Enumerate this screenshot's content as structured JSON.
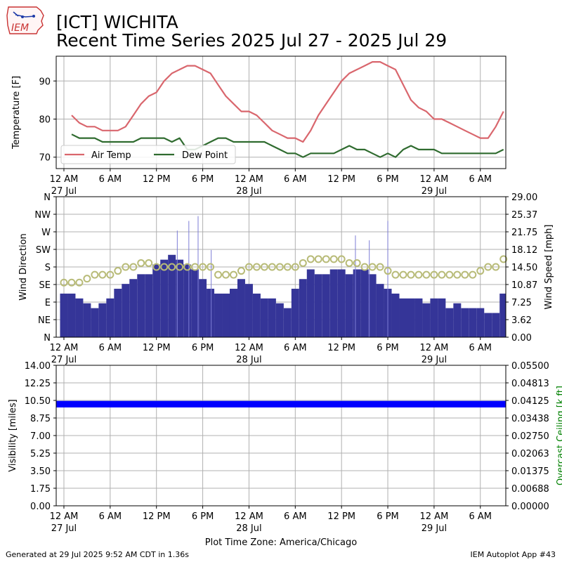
{
  "header": {
    "station": "[ICT] WICHITA",
    "subtitle": "Recent Time Series 2025 Jul 27 - 2025 Jul 29",
    "logo_text": "IEM"
  },
  "footer": {
    "generated": "Generated at 29 Jul 2025 9:52 AM CDT in 1.36s",
    "app": "IEM Autoplot App #43",
    "timezone_label": "Plot Time Zone: America/Chicago"
  },
  "colors": {
    "air_temp": "#d9666d",
    "dew_point": "#2f6b2f",
    "wind_speed": "#353598",
    "wind_gust": "#7d7dd6",
    "wind_dir": "#b8bb78",
    "visibility": "#0000ff",
    "ceiling_label": "#008000",
    "grid": "#b0b0b0"
  },
  "x_axis": {
    "ticks": [
      {
        "h": 0,
        "label": "12 AM",
        "sub": "27 Jul"
      },
      {
        "h": 6,
        "label": "6 AM",
        "sub": ""
      },
      {
        "h": 12,
        "label": "12 PM",
        "sub": ""
      },
      {
        "h": 18,
        "label": "6 PM",
        "sub": ""
      },
      {
        "h": 24,
        "label": "12 AM",
        "sub": "28 Jul"
      },
      {
        "h": 30,
        "label": "6 AM",
        "sub": ""
      },
      {
        "h": 36,
        "label": "12 PM",
        "sub": ""
      },
      {
        "h": 42,
        "label": "6 PM",
        "sub": ""
      },
      {
        "h": 48,
        "label": "12 AM",
        "sub": "29 Jul"
      },
      {
        "h": 54,
        "label": "6 AM",
        "sub": ""
      }
    ]
  },
  "chart_data": [
    {
      "type": "line",
      "ylabel": "Temperature [F]",
      "x_unit": "hours since 27 Jul 12 AM",
      "ylim": [
        67,
        96.5
      ],
      "yticks": [
        70,
        80,
        90
      ],
      "grid": true,
      "legend_placement": "lower-left",
      "series": [
        {
          "name": "Air Temp",
          "x": [
            1,
            2,
            3,
            4,
            5,
            6,
            7,
            8,
            9,
            10,
            11,
            12,
            13,
            14,
            15,
            16,
            17,
            18,
            19,
            20,
            21,
            22,
            23,
            24,
            25,
            26,
            27,
            28,
            29,
            30,
            31,
            32,
            33,
            34,
            35,
            36,
            37,
            38,
            39,
            40,
            41,
            42,
            43,
            44,
            45,
            46,
            47,
            48,
            49,
            50,
            51,
            52,
            53,
            54,
            55,
            56,
            57
          ],
          "values": [
            81,
            79,
            78,
            78,
            77,
            77,
            77,
            78,
            81,
            84,
            86,
            87,
            90,
            92,
            93,
            94,
            94,
            93,
            92,
            89,
            86,
            84,
            82,
            82,
            81,
            79,
            77,
            76,
            75,
            75,
            74,
            77,
            81,
            84,
            87,
            90,
            92,
            93,
            94,
            95,
            95,
            94,
            93,
            89,
            85,
            83,
            82,
            80,
            80,
            79,
            78,
            77,
            76,
            75,
            75,
            78,
            82
          ]
        },
        {
          "name": "Dew Point",
          "x": [
            1,
            2,
            3,
            4,
            5,
            6,
            7,
            8,
            9,
            10,
            11,
            12,
            13,
            14,
            15,
            16,
            17,
            18,
            19,
            20,
            21,
            22,
            23,
            24,
            25,
            26,
            27,
            28,
            29,
            30,
            31,
            32,
            33,
            34,
            35,
            36,
            37,
            38,
            39,
            40,
            41,
            42,
            43,
            44,
            45,
            46,
            47,
            48,
            49,
            50,
            51,
            52,
            53,
            54,
            55,
            56,
            57
          ],
          "values": [
            76,
            75,
            75,
            75,
            74,
            74,
            74,
            74,
            74,
            75,
            75,
            75,
            75,
            74,
            75,
            72,
            72,
            73,
            74,
            75,
            75,
            74,
            74,
            74,
            74,
            74,
            73,
            72,
            71,
            71,
            70,
            71,
            71,
            71,
            71,
            72,
            73,
            72,
            72,
            71,
            70,
            71,
            70,
            72,
            73,
            72,
            72,
            72,
            71,
            71,
            71,
            71,
            71,
            71,
            71,
            71,
            72
          ]
        }
      ]
    },
    {
      "type": "bar",
      "ylabel": "Wind Direction",
      "y2label": "Wind Speed [mph]",
      "x_unit": "hours since 27 Jul 12 AM",
      "direction_ticks": [
        "N",
        "NE",
        "E",
        "SE",
        "S",
        "SW",
        "W",
        "NW",
        "N"
      ],
      "ylim_direction": [
        0,
        360
      ],
      "ylim_speed": [
        0,
        29
      ],
      "y2ticks": [
        "0.00",
        "3.62",
        "7.25",
        "10.87",
        "14.50",
        "18.12",
        "21.75",
        "25.37",
        "29.00"
      ],
      "grid": true,
      "series": [
        {
          "name": "Wind Speed",
          "x": [
            0,
            1,
            2,
            3,
            4,
            5,
            6,
            7,
            8,
            9,
            10,
            11,
            12,
            13,
            14,
            15,
            16,
            17,
            18,
            19,
            20,
            21,
            22,
            23,
            24,
            25,
            26,
            27,
            28,
            29,
            30,
            31,
            32,
            33,
            34,
            35,
            36,
            37,
            38,
            39,
            40,
            41,
            42,
            43,
            44,
            45,
            46,
            47,
            48,
            49,
            50,
            51,
            52,
            53,
            54,
            55,
            56,
            57
          ],
          "values": [
            9,
            9,
            8,
            7,
            6,
            7,
            8,
            10,
            11,
            12,
            13,
            13,
            15,
            16,
            17,
            16,
            15,
            14,
            12,
            10,
            9,
            9,
            10,
            12,
            11,
            9,
            8,
            8,
            7,
            6,
            10,
            12,
            14,
            13,
            13,
            14,
            14,
            13,
            14,
            14,
            13,
            11,
            10,
            9,
            8,
            8,
            8,
            7,
            8,
            8,
            6,
            7,
            6,
            6,
            6,
            5,
            5,
            9
          ]
        },
        {
          "name": "Wind Gust",
          "x": [
            14.7,
            16.2,
            17.4,
            19.1,
            37.8,
            39.6,
            42.0
          ],
          "values": [
            22,
            24,
            25,
            18,
            21,
            20,
            24
          ]
        },
        {
          "name": "Wind Direction",
          "x": [
            0,
            1,
            2,
            3,
            4,
            5,
            6,
            7,
            8,
            9,
            10,
            11,
            12,
            13,
            14,
            15,
            16,
            17,
            18,
            19,
            20,
            21,
            22,
            23,
            24,
            25,
            26,
            27,
            28,
            29,
            30,
            31,
            32,
            33,
            34,
            35,
            36,
            37,
            38,
            39,
            40,
            41,
            42,
            43,
            44,
            45,
            46,
            47,
            48,
            49,
            50,
            51,
            52,
            53,
            54,
            55,
            56,
            57
          ],
          "values": [
            140,
            140,
            140,
            150,
            160,
            160,
            160,
            170,
            180,
            180,
            190,
            190,
            180,
            180,
            180,
            180,
            180,
            180,
            180,
            180,
            160,
            160,
            160,
            170,
            180,
            180,
            180,
            180,
            180,
            180,
            180,
            190,
            200,
            200,
            200,
            200,
            200,
            190,
            190,
            180,
            180,
            180,
            170,
            160,
            160,
            160,
            160,
            160,
            160,
            160,
            160,
            160,
            160,
            160,
            170,
            180,
            180,
            200
          ]
        }
      ]
    },
    {
      "type": "area",
      "ylabel": "Visibility [miles]",
      "y2label": "Overcast Ceiling [k ft]",
      "x_unit": "hours since 27 Jul 12 AM",
      "ylim": [
        0,
        14
      ],
      "yticks": [
        "0.00",
        "1.75",
        "3.50",
        "5.25",
        "7.00",
        "8.75",
        "10.50",
        "12.25",
        "14.00"
      ],
      "ylim2": [
        0,
        0.055
      ],
      "y2ticks": [
        "0.00000",
        "0.00688",
        "0.01375",
        "0.02063",
        "0.02750",
        "0.03438",
        "0.04125",
        "0.04813",
        "0.05500"
      ],
      "grid": true,
      "series": [
        {
          "name": "Visibility",
          "x": [
            -2,
            57.5
          ],
          "values": [
            10,
            10
          ],
          "band": [
            9.8,
            10.45
          ]
        }
      ]
    }
  ]
}
